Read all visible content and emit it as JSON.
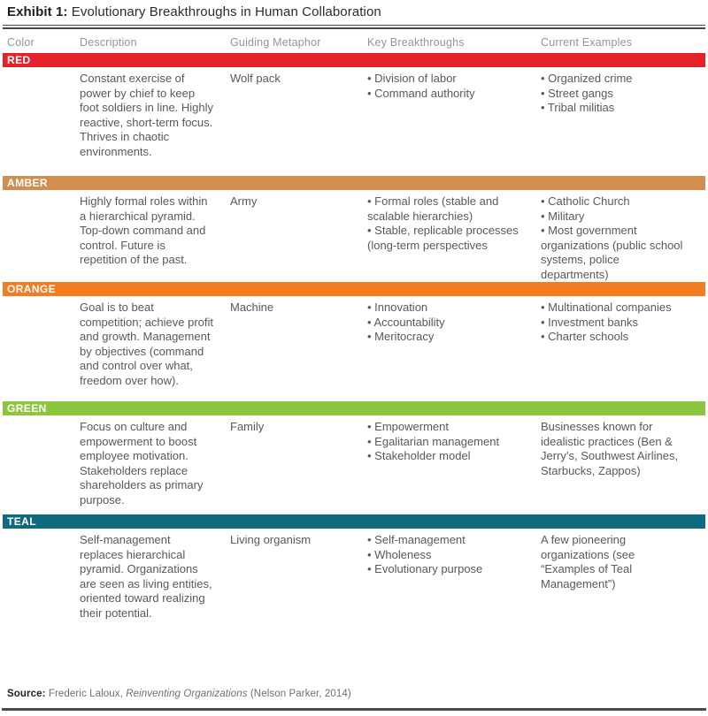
{
  "title": {
    "prefix": "Exhibit 1:",
    "text": " Evolutionary Breakthroughs in Human Collaboration"
  },
  "table": {
    "columns": [
      "Color",
      "Description",
      "Guiding Metaphor",
      "Key Breakthroughs",
      "Current Examples"
    ],
    "rows": [
      {
        "color_label": "RED",
        "band_color": "#E52129",
        "description": "Constant exercise of power by chief to keep foot soldiers in line. Highly reactive, short-term focus. Thrives in chaotic environments.",
        "metaphor": "Wolf pack",
        "breakthroughs": {
          "bulleted": true,
          "items": [
            "Division of labor",
            "Command authority"
          ]
        },
        "examples": {
          "bulleted": true,
          "items": [
            "Organized crime",
            "Street gangs",
            "Tribal militias"
          ]
        }
      },
      {
        "color_label": "AMBER",
        "band_color": "#D18E4F",
        "description": "Highly formal roles within a hierarchical pyramid. Top-down command and control. Future is repetition of the past.",
        "metaphor": "Army",
        "breakthroughs": {
          "bulleted": true,
          "items": [
            "Formal roles (stable and scalable hierarchies)",
            "Stable, replicable processes (long-term perspectives"
          ]
        },
        "examples": {
          "bulleted": true,
          "items": [
            "Catholic Church",
            "Military",
            "Most government organizations (public school systems, police departments)"
          ]
        }
      },
      {
        "color_label": "ORANGE",
        "band_color": "#F47C20",
        "description": "Goal is to beat competition; achieve profit and growth. Management by objectives (command and control over what, freedom over how).",
        "metaphor": "Machine",
        "breakthroughs": {
          "bulleted": true,
          "items": [
            "Innovation",
            "Accountability",
            "Meritocracy"
          ]
        },
        "examples": {
          "bulleted": true,
          "items": [
            "Multinational companies",
            "Investment banks",
            "Charter schools"
          ]
        }
      },
      {
        "color_label": "GREEN",
        "band_color": "#8CC63F",
        "description": "Focus on culture and empowerment to boost employee motivation. Stakeholders replace shareholders as primary purpose.",
        "metaphor": "Family",
        "breakthroughs": {
          "bulleted": true,
          "items": [
            "Empowerment",
            "Egalitarian management",
            "Stakeholder model"
          ]
        },
        "examples": {
          "bulleted": false,
          "items": [
            "Businesses known for idealistic practices (Ben & Jerry’s, Southwest Airlines, Starbucks, Zappos)"
          ]
        }
      },
      {
        "color_label": "TEAL",
        "band_color": "#0F6A7D",
        "description": "Self-management replaces hierarchical pyramid. Organizations are seen as living entities, oriented toward realizing their potential.",
        "metaphor": "Living organism",
        "breakthroughs": {
          "bulleted": true,
          "items": [
            "Self-management",
            "Wholeness",
            "Evolutionary purpose"
          ]
        },
        "examples": {
          "bulleted": false,
          "items": [
            "A few pioneering organizations (see “Examples of Teal Management”)"
          ]
        }
      }
    ]
  },
  "footer": {
    "source_label": "Source:",
    "source_author": " Frederic Laloux, ",
    "source_title": "Reinventing Organizations",
    "source_rest": " (Nelson Parker, 2014)"
  }
}
